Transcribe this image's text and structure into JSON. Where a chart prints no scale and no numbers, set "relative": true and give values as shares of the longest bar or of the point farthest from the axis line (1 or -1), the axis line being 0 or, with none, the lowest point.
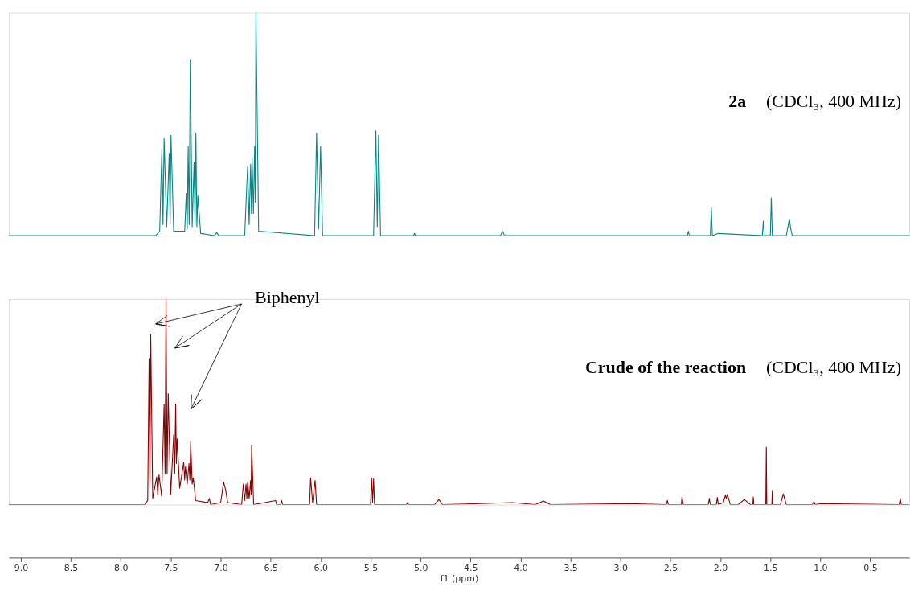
{
  "chart_data": [
    {
      "type": "line",
      "relative": true,
      "xlim": [
        9.12,
        0.11
      ],
      "tick_labels": false,
      "marker": "none",
      "line_style": "solid",
      "annotations": [
        "2a",
        "(CDCl₃, 400 MHz)"
      ],
      "series": [
        {
          "color": "#0a8582",
          "x": [
            9.12,
            7.65,
            7.61,
            7.588,
            7.577,
            7.566,
            7.54,
            7.515,
            7.506,
            7.497,
            7.47,
            7.36,
            7.344,
            7.335,
            7.325,
            7.315,
            7.304,
            7.285,
            7.266,
            7.257,
            7.248,
            7.238,
            7.228,
            7.2,
            7.06,
            7.04,
            7.02,
            6.76,
            6.73,
            6.715,
            6.7,
            6.692,
            6.685,
            6.672,
            6.66,
            6.653,
            6.647,
            6.62,
            6.06,
            6.04,
            6.02,
            6.0,
            5.98,
            5.47,
            5.447,
            5.433,
            5.42,
            5.4,
            5.07,
            5.06,
            5.05,
            4.2,
            4.18,
            4.16,
            2.33,
            2.32,
            2.31,
            2.1,
            2.09,
            2.08,
            2.02,
            1.58,
            1.57,
            1.56,
            1.5,
            1.49,
            1.48,
            1.34,
            1.325,
            1.31,
            1.295,
            1.28,
            0.11
          ],
          "values": [
            0,
            0,
            0.02,
            0.39,
            0.05,
            0.435,
            0.04,
            0.37,
            0.05,
            0.45,
            0.02,
            0.02,
            0.19,
            0.03,
            0.4,
            0.05,
            0.79,
            0.04,
            0.33,
            0.05,
            0.46,
            0.04,
            0.18,
            0.01,
            0,
            0.015,
            0,
            0,
            0.31,
            0.05,
            0.32,
            0.1,
            0.35,
            0.1,
            0.4,
            0.15,
            1.0,
            0.02,
            0,
            0.46,
            0.03,
            0.4,
            0,
            0,
            0.47,
            0.04,
            0.45,
            0,
            0,
            0.01,
            0,
            0,
            0.02,
            0,
            0,
            0.02,
            0,
            0,
            0.125,
            0,
            0.01,
            0,
            0.065,
            0,
            0,
            0.17,
            0,
            0,
            0.036,
            0.075,
            0.03,
            0,
            0
          ]
        }
      ]
    },
    {
      "type": "line",
      "relative": true,
      "xlim": [
        9.12,
        0.11
      ],
      "marker": "none",
      "line_style": "solid",
      "xlabel": "f1 (ppm)",
      "xticks": [
        {
          "value": 9.0,
          "label": "9.0"
        },
        {
          "value": 8.5,
          "label": "8.5"
        },
        {
          "value": 8.0,
          "label": "8.0"
        },
        {
          "value": 7.5,
          "label": "7.5"
        },
        {
          "value": 7.0,
          "label": "7.0"
        },
        {
          "value": 6.5,
          "label": "6.5"
        },
        {
          "value": 6.0,
          "label": "6.0"
        },
        {
          "value": 5.5,
          "label": "5.5"
        },
        {
          "value": 5.0,
          "label": "5.0"
        },
        {
          "value": 4.5,
          "label": "4.5"
        },
        {
          "value": 4.0,
          "label": "4.0"
        },
        {
          "value": 3.5,
          "label": "3.5"
        },
        {
          "value": 3.0,
          "label": "3.0"
        },
        {
          "value": 2.5,
          "label": "2.5"
        },
        {
          "value": 2.0,
          "label": "2.0"
        },
        {
          "value": 1.5,
          "label": "1.5"
        },
        {
          "value": 1.0,
          "label": "1.0"
        },
        {
          "value": 0.5,
          "label": "0.5"
        }
      ],
      "annotations": [
        "Crude of the reaction",
        "(CDCl₃, 400 MHz)",
        "Biphenyl"
      ],
      "series": [
        {
          "color": "#8b0000",
          "x": [
            9.12,
            7.76,
            7.73,
            7.716,
            7.708,
            7.7,
            7.68,
            7.64,
            7.63,
            7.617,
            7.59,
            7.566,
            7.556,
            7.547,
            7.536,
            7.525,
            7.5,
            7.47,
            7.46,
            7.45,
            7.443,
            7.435,
            7.41,
            7.37,
            7.36,
            7.352,
            7.335,
            7.317,
            7.308,
            7.3,
            7.285,
            7.274,
            7.25,
            7.13,
            7.113,
            7.1,
            7.0,
            6.97,
            6.95,
            6.93,
            6.79,
            6.773,
            6.76,
            6.746,
            6.738,
            6.73,
            6.715,
            6.7,
            6.695,
            6.69,
            6.67,
            6.45,
            6.44,
            6.4,
            6.39,
            6.38,
            6.11,
            6.1,
            6.08,
            6.055,
            6.04,
            5.5,
            5.49,
            5.48,
            5.47,
            5.46,
            5.14,
            5.13,
            5.12,
            4.86,
            4.816,
            4.78,
            4.47,
            4.08,
            3.85,
            3.77,
            3.7,
            2.91,
            2.54,
            2.53,
            2.52,
            2.39,
            2.384,
            2.37,
            2.12,
            2.11,
            2.1,
            2.04,
            2.03,
            2.02,
            1.97,
            1.95,
            1.94,
            1.93,
            1.9,
            1.82,
            1.76,
            1.7,
            1.675,
            1.67,
            1.665,
            1.545,
            1.54,
            1.535,
            1.485,
            1.48,
            1.475,
            1.4,
            1.37,
            1.34,
            1.08,
            1.064,
            1.05,
            0.99,
            0.21,
            0.2,
            0.19,
            0.11
          ],
          "values": [
            0,
            0,
            0.02,
            0.71,
            0.1,
            0.83,
            0.03,
            0.135,
            0.05,
            0.145,
            0.04,
            0.49,
            0.15,
            1.0,
            0.15,
            0.54,
            0.05,
            0.34,
            0.15,
            0.49,
            0.2,
            0.32,
            0.08,
            0.205,
            0.12,
            0.185,
            0.1,
            0.2,
            0.12,
            0.31,
            0.1,
            0.13,
            0.02,
            0.01,
            0.03,
            0,
            0.01,
            0.11,
            0.07,
            0.01,
            0,
            0.1,
            0.02,
            0.1,
            0.03,
            0.11,
            0.03,
            0.117,
            0.05,
            0.29,
            0,
            0.02,
            0,
            0,
            0.02,
            0,
            0,
            0.13,
            0.01,
            0.117,
            0,
            0,
            0.13,
            0.01,
            0.125,
            0,
            0,
            0.01,
            0,
            0,
            0.025,
            0,
            0.004,
            0.01,
            0,
            0.018,
            0,
            0.005,
            0,
            0.02,
            0,
            0,
            0.037,
            0,
            0,
            0.03,
            0,
            0,
            0.035,
            0,
            0.01,
            0.045,
            0.03,
            0.05,
            0,
            0,
            0.025,
            0,
            0,
            0.037,
            0,
            0,
            0.28,
            0,
            0,
            0.065,
            0,
            0,
            0.052,
            0,
            0,
            0.015,
            0,
            0.005,
            0,
            0.03,
            0,
            0
          ]
        }
      ]
    }
  ]
}
